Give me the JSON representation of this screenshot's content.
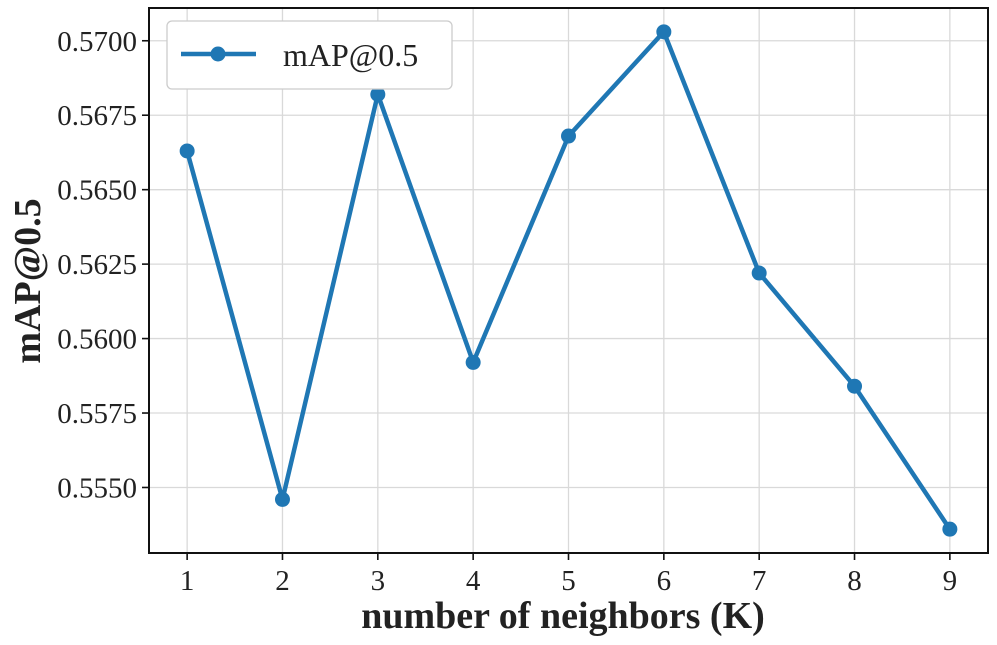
{
  "chart_data": {
    "type": "line",
    "title": "",
    "xlabel": "number of neighbors (K)",
    "ylabel": "mAP@0.5",
    "x": [
      1,
      2,
      3,
      4,
      5,
      6,
      7,
      8,
      9
    ],
    "series": [
      {
        "name": "mAP@0.5",
        "color": "#1f77b4",
        "marker": "circle",
        "values": [
          0.5663,
          0.5546,
          0.5682,
          0.5592,
          0.5668,
          0.5703,
          0.5622,
          0.5584,
          0.5536
        ]
      }
    ],
    "xlim": [
      0.6,
      9.4
    ],
    "ylim": [
      0.5528,
      0.5711
    ],
    "xticks": [
      "1",
      "2",
      "3",
      "4",
      "5",
      "6",
      "7",
      "8",
      "9"
    ],
    "yticks": [
      "0.5550",
      "0.5575",
      "0.5600",
      "0.5625",
      "0.5650",
      "0.5675",
      "0.5700"
    ],
    "grid": true,
    "legend_position": "top-left"
  }
}
